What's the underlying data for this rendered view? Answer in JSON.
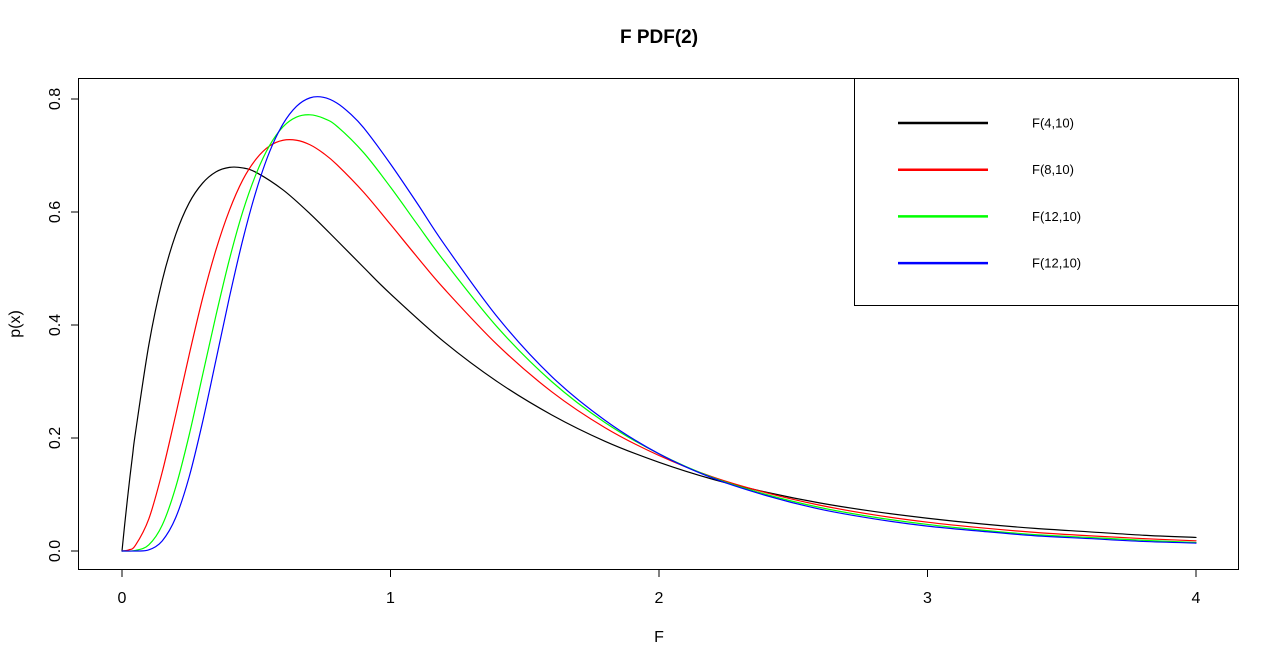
{
  "title": "F PDF(2)",
  "chart_data": {
    "type": "line",
    "title": "F PDF(2)",
    "xlabel": "F",
    "ylabel": "p(x)",
    "xlim": [
      0,
      4
    ],
    "ylim": [
      0,
      0.8
    ],
    "x_ticks": [
      0,
      1,
      2,
      3,
      4
    ],
    "x_tick_labels": [
      "0",
      "1",
      "2",
      "3",
      "4"
    ],
    "y_ticks": [
      0,
      0.2,
      0.4,
      0.6,
      0.8
    ],
    "y_tick_labels": [
      "0.0",
      "0.2",
      "0.4",
      "0.6",
      "0.8"
    ],
    "grid": false,
    "legend_position": "topright",
    "axis_color": "#000000",
    "background_color": "#ffffff",
    "series": [
      {
        "name": "F(4,10)",
        "color": "#000000",
        "points": [
          [
            0,
            0
          ],
          [
            0.01,
            0.047
          ],
          [
            0.02,
            0.091
          ],
          [
            0.03,
            0.133
          ],
          [
            0.04,
            0.172
          ],
          [
            0.05,
            0.209
          ],
          [
            0.1,
            0.365
          ],
          [
            0.15,
            0.479
          ],
          [
            0.2,
            0.56
          ],
          [
            0.25,
            0.616
          ],
          [
            0.3,
            0.651
          ],
          [
            0.35,
            0.671
          ],
          [
            0.4,
            0.679
          ],
          [
            0.45,
            0.678
          ],
          [
            0.5,
            0.67
          ],
          [
            0.6,
            0.639
          ],
          [
            0.7,
            0.597
          ],
          [
            0.8,
            0.55
          ],
          [
            0.9,
            0.502
          ],
          [
            1.0,
            0.455
          ],
          [
            1.2,
            0.37
          ],
          [
            1.4,
            0.299
          ],
          [
            1.6,
            0.241
          ],
          [
            1.8,
            0.194
          ],
          [
            2.0,
            0.157
          ],
          [
            2.2,
            0.127
          ],
          [
            2.4,
            0.104
          ],
          [
            2.6,
            0.085
          ],
          [
            2.8,
            0.07
          ],
          [
            3.0,
            0.058
          ],
          [
            3.2,
            0.048
          ],
          [
            3.4,
            0.04
          ],
          [
            3.6,
            0.034
          ],
          [
            3.8,
            0.028
          ],
          [
            4.0,
            0.024
          ]
        ]
      },
      {
        "name": "F(8,10)",
        "color": "#FF0000",
        "points": [
          [
            0,
            0
          ],
          [
            0.025,
            0.002
          ],
          [
            0.05,
            0.01
          ],
          [
            0.1,
            0.057
          ],
          [
            0.15,
            0.14
          ],
          [
            0.2,
            0.241
          ],
          [
            0.25,
            0.347
          ],
          [
            0.3,
            0.447
          ],
          [
            0.35,
            0.533
          ],
          [
            0.4,
            0.603
          ],
          [
            0.45,
            0.657
          ],
          [
            0.5,
            0.694
          ],
          [
            0.55,
            0.717
          ],
          [
            0.6,
            0.727
          ],
          [
            0.65,
            0.727
          ],
          [
            0.7,
            0.719
          ],
          [
            0.75,
            0.704
          ],
          [
            0.8,
            0.684
          ],
          [
            0.9,
            0.635
          ],
          [
            1.0,
            0.578
          ],
          [
            1.1,
            0.52
          ],
          [
            1.2,
            0.464
          ],
          [
            1.4,
            0.364
          ],
          [
            1.6,
            0.282
          ],
          [
            1.8,
            0.218
          ],
          [
            2.0,
            0.169
          ],
          [
            2.2,
            0.131
          ],
          [
            2.4,
            0.103
          ],
          [
            2.6,
            0.081
          ],
          [
            2.8,
            0.064
          ],
          [
            3.0,
            0.051
          ],
          [
            3.2,
            0.041
          ],
          [
            3.4,
            0.033
          ],
          [
            3.6,
            0.027
          ],
          [
            3.8,
            0.022
          ],
          [
            4.0,
            0.018
          ]
        ]
      },
      {
        "name": "F(12,10)",
        "color": "#00FF00",
        "points": [
          [
            0,
            0
          ],
          [
            0.05,
            0.001
          ],
          [
            0.1,
            0.011
          ],
          [
            0.15,
            0.046
          ],
          [
            0.2,
            0.113
          ],
          [
            0.25,
            0.205
          ],
          [
            0.3,
            0.311
          ],
          [
            0.35,
            0.417
          ],
          [
            0.4,
            0.516
          ],
          [
            0.45,
            0.601
          ],
          [
            0.5,
            0.668
          ],
          [
            0.55,
            0.718
          ],
          [
            0.6,
            0.751
          ],
          [
            0.65,
            0.768
          ],
          [
            0.7,
            0.772
          ],
          [
            0.75,
            0.766
          ],
          [
            0.8,
            0.752
          ],
          [
            0.9,
            0.705
          ],
          [
            1.0,
            0.644
          ],
          [
            1.1,
            0.578
          ],
          [
            1.2,
            0.513
          ],
          [
            1.4,
            0.395
          ],
          [
            1.6,
            0.3
          ],
          [
            1.8,
            0.227
          ],
          [
            2.0,
            0.172
          ],
          [
            2.2,
            0.13
          ],
          [
            2.4,
            0.1
          ],
          [
            2.6,
            0.077
          ],
          [
            2.8,
            0.06
          ],
          [
            3.0,
            0.047
          ],
          [
            3.2,
            0.037
          ],
          [
            3.4,
            0.029
          ],
          [
            3.6,
            0.024
          ],
          [
            3.8,
            0.019
          ],
          [
            4.0,
            0.015
          ]
        ]
      },
      {
        "name": "F(12,10)",
        "color": "#0000FF",
        "points": [
          [
            0,
            0
          ],
          [
            0.05,
            0
          ],
          [
            0.1,
            0.002
          ],
          [
            0.15,
            0.018
          ],
          [
            0.2,
            0.059
          ],
          [
            0.25,
            0.131
          ],
          [
            0.3,
            0.228
          ],
          [
            0.35,
            0.338
          ],
          [
            0.4,
            0.449
          ],
          [
            0.45,
            0.551
          ],
          [
            0.5,
            0.638
          ],
          [
            0.55,
            0.707
          ],
          [
            0.6,
            0.756
          ],
          [
            0.65,
            0.787
          ],
          [
            0.7,
            0.802
          ],
          [
            0.75,
            0.803
          ],
          [
            0.8,
            0.793
          ],
          [
            0.85,
            0.774
          ],
          [
            0.9,
            0.749
          ],
          [
            1.0,
            0.685
          ],
          [
            1.1,
            0.615
          ],
          [
            1.2,
            0.543
          ],
          [
            1.4,
            0.413
          ],
          [
            1.6,
            0.309
          ],
          [
            1.8,
            0.231
          ],
          [
            2.0,
            0.172
          ],
          [
            2.2,
            0.129
          ],
          [
            2.4,
            0.098
          ],
          [
            2.6,
            0.074
          ],
          [
            2.8,
            0.057
          ],
          [
            3.0,
            0.044
          ],
          [
            3.2,
            0.035
          ],
          [
            3.4,
            0.027
          ],
          [
            3.6,
            0.022
          ],
          [
            3.8,
            0.017
          ],
          [
            4.0,
            0.014
          ]
        ]
      }
    ]
  }
}
